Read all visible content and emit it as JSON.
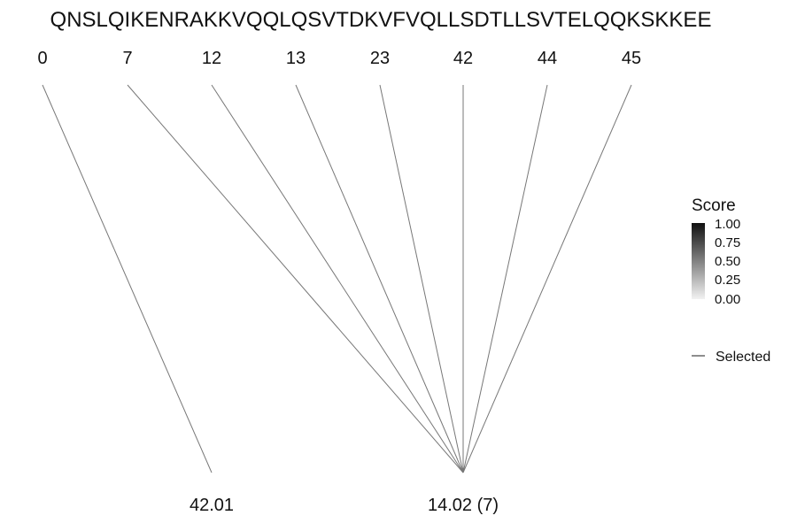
{
  "sequence": "QNSLQIKENRAKKVQQLQSVTDKVFVQLLSDTLLSVTELQQKSKKEE",
  "positions": [
    "0",
    "7",
    "12",
    "13",
    "23",
    "42",
    "44",
    "45"
  ],
  "masses": [
    "42.01",
    "14.02 (7)"
  ],
  "links": [
    {
      "position": 0,
      "mass": 0
    },
    {
      "position": 1,
      "mass": 1
    },
    {
      "position": 2,
      "mass": 1
    },
    {
      "position": 3,
      "mass": 1
    },
    {
      "position": 4,
      "mass": 1
    },
    {
      "position": 5,
      "mass": 1
    },
    {
      "position": 6,
      "mass": 1
    },
    {
      "position": 7,
      "mass": 1
    }
  ],
  "legend": {
    "title": "Score",
    "ticks": [
      "1.00",
      "0.75",
      "0.50",
      "0.25",
      "0.00"
    ],
    "gradient_top": "#111111",
    "gradient_bottom": "#f2f2f2",
    "selected_label": "Selected"
  },
  "colors": {
    "line": "#777777",
    "text": "#111111"
  }
}
